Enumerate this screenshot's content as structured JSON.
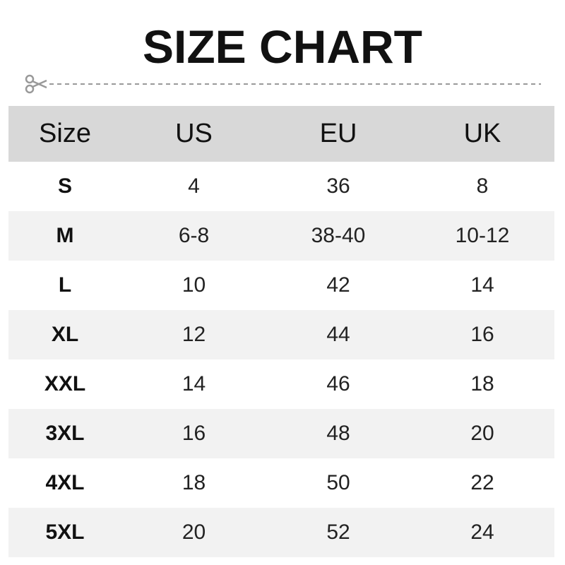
{
  "title": "SIZE CHART",
  "cut_icon": "scissors-icon",
  "colors": {
    "header_bg": "#d8d8d8",
    "stripe_bg": "#f2f2f2",
    "dash": "#999999"
  },
  "headers": [
    "Size",
    "US",
    "EU",
    "UK"
  ],
  "rows": [
    [
      "S",
      "4",
      "36",
      "8"
    ],
    [
      "M",
      "6-8",
      "38-40",
      "10-12"
    ],
    [
      "L",
      "10",
      "42",
      "14"
    ],
    [
      "XL",
      "12",
      "44",
      "16"
    ],
    [
      "XXL",
      "14",
      "46",
      "18"
    ],
    [
      "3XL",
      "16",
      "48",
      "20"
    ],
    [
      "4XL",
      "18",
      "50",
      "22"
    ],
    [
      "5XL",
      "20",
      "52",
      "24"
    ]
  ]
}
